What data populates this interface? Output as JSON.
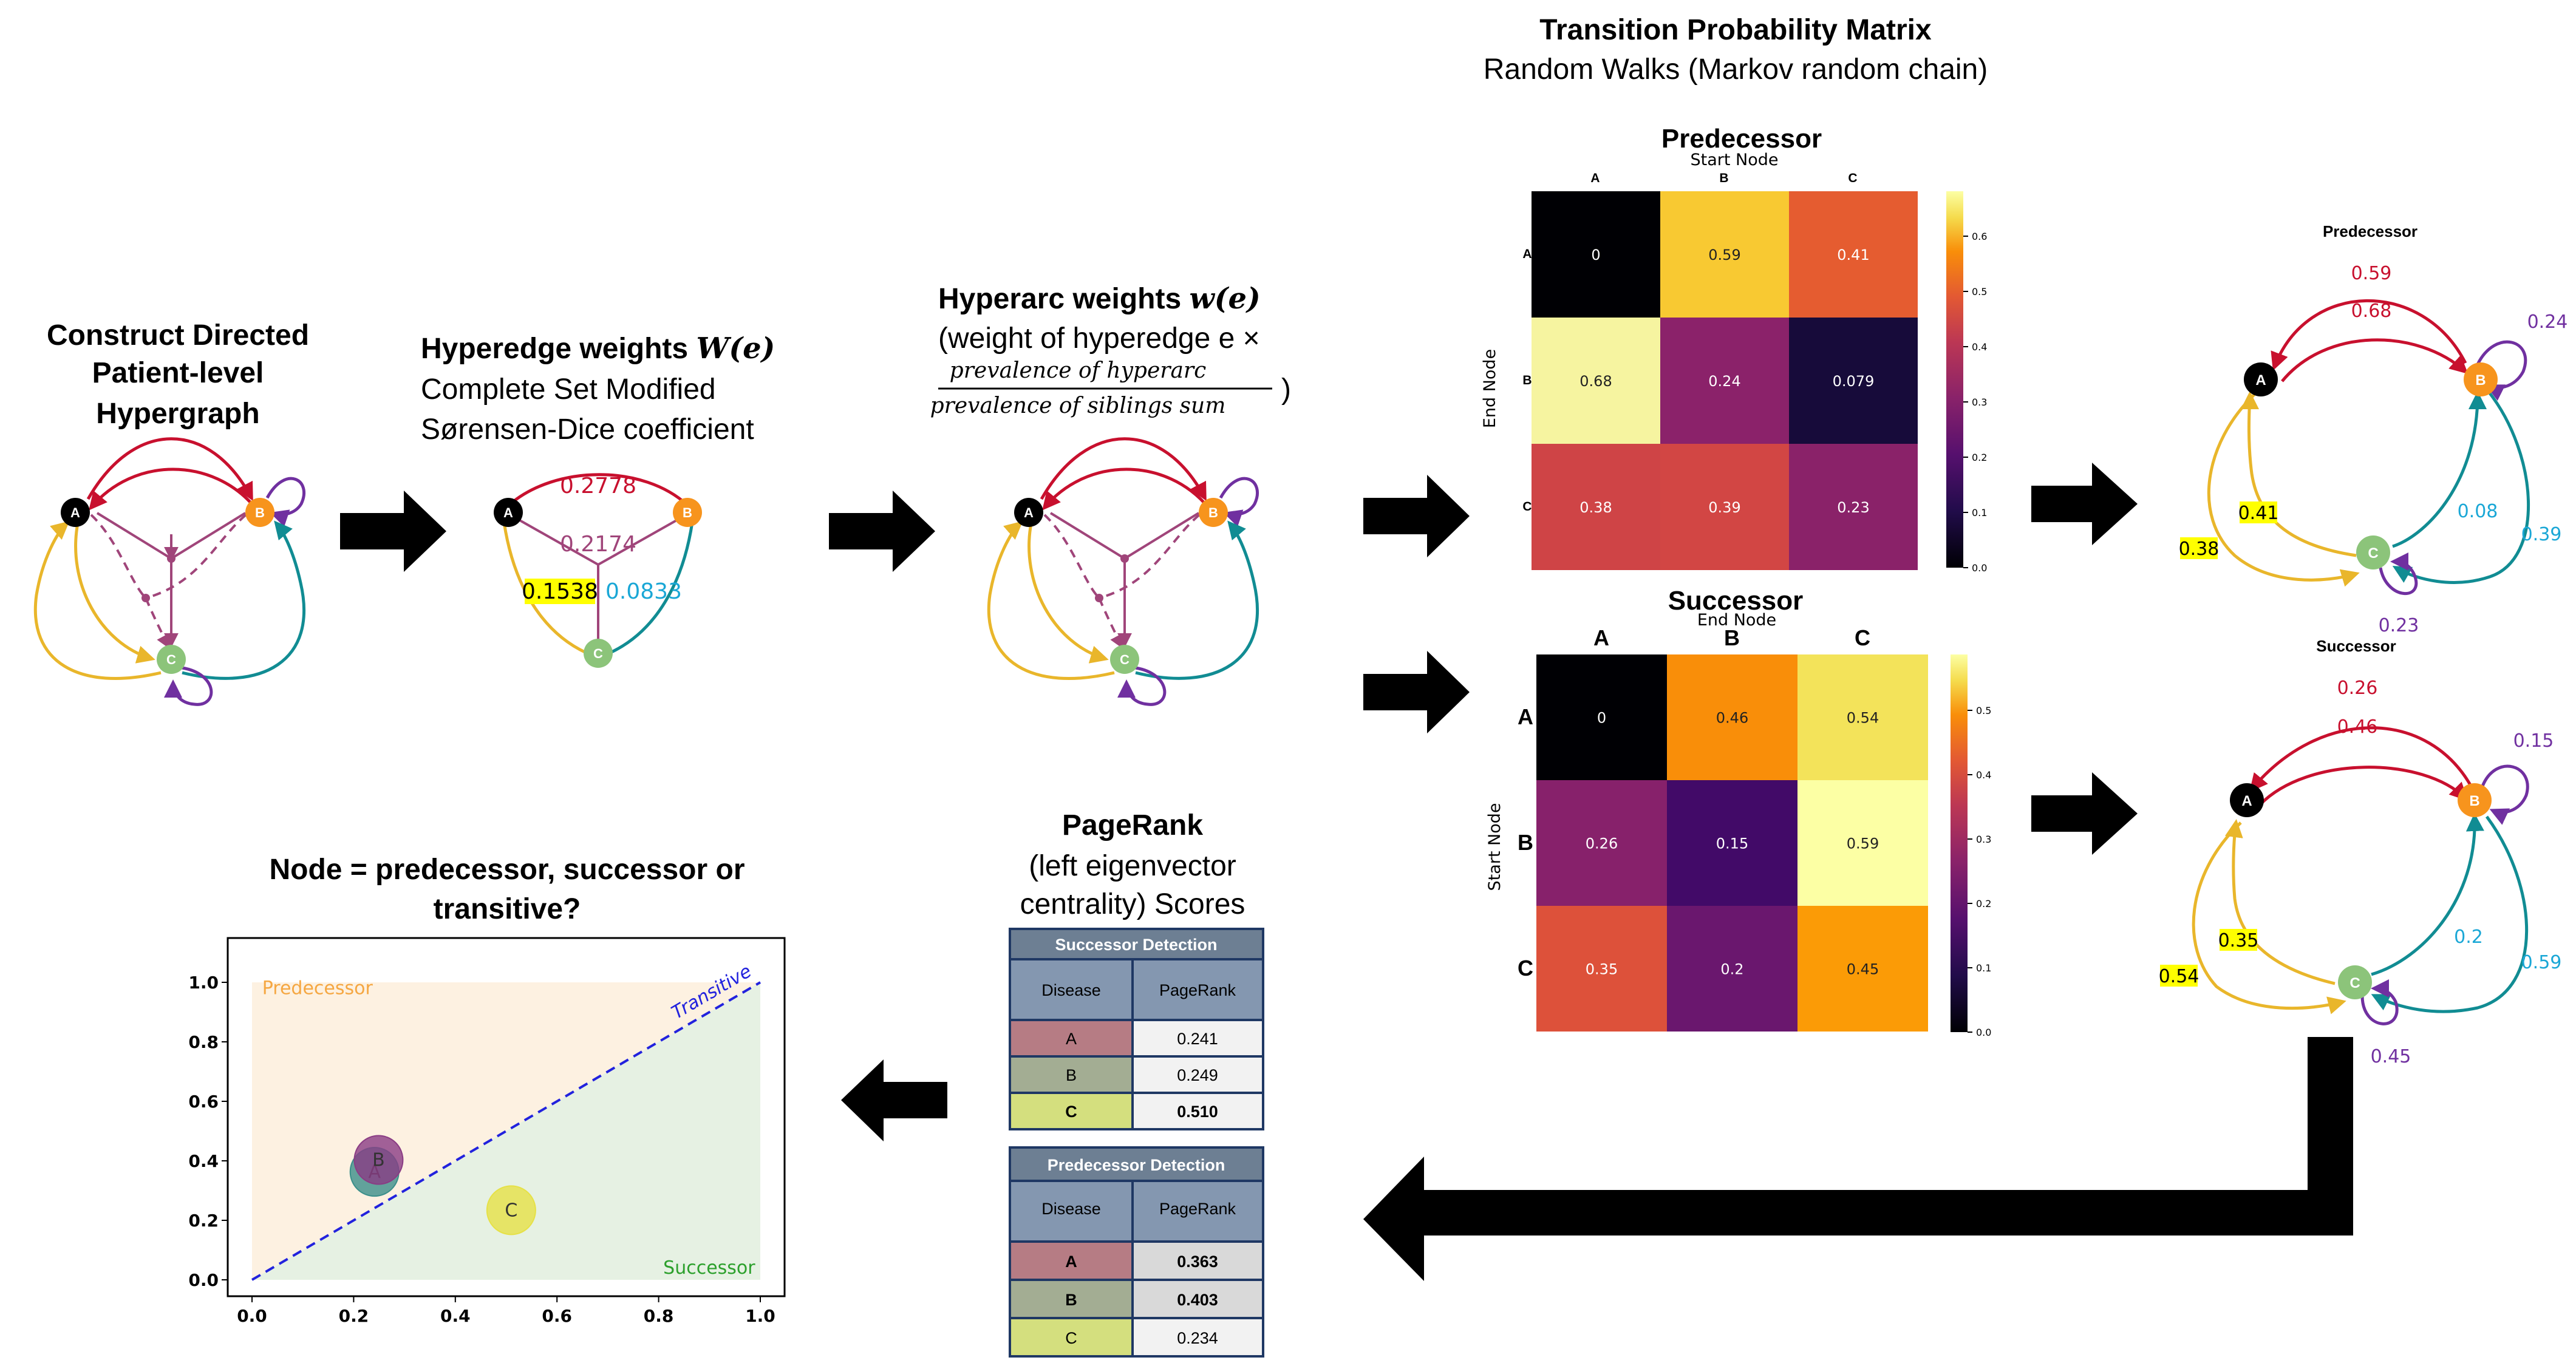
{
  "construct": {
    "title_lines": [
      "Construct Directed",
      "Patient-level",
      "Hypergraph"
    ]
  },
  "hyperedge": {
    "title_text": "Hyperedge weights ",
    "title_math": "W(e)",
    "lines": [
      "Complete Set Modified",
      "Sørensen-Dice coefficient"
    ],
    "w_ab": "0.2778",
    "w_tri": "0.2174",
    "w_ac": "0.1538",
    "w_bc": "0.0833"
  },
  "hyperarc": {
    "title_text": "Hyperarc weights ",
    "title_math": "w(e)",
    "paren_line": "(weight of hyperedge e ×",
    "fraction_num": "prevalence of hyperarc",
    "fraction_den": "prevalence of siblings sum",
    "close_paren": ")"
  },
  "nodes": {
    "a": "A",
    "b": "B",
    "c": "C"
  },
  "tpm": {
    "title": "Transition Probability Matrix",
    "subtitle": "Random Walks (Markov random chain)"
  },
  "pred_heatmap": {
    "title": "Predecessor",
    "top_label": "Start Node",
    "side_label": "End Node",
    "col_labels": [
      "A",
      "B",
      "C"
    ],
    "row_labels": [
      "A",
      "B",
      "C"
    ],
    "values": [
      [
        "0",
        "0.59",
        "0.41"
      ],
      [
        "0.68",
        "0.24",
        "0.079"
      ],
      [
        "0.38",
        "0.39",
        "0.23"
      ]
    ],
    "colors": [
      [
        "#000004",
        "#f8c932",
        "#e55c30"
      ],
      [
        "#f6f4a0",
        "#8b226a",
        "#170b3a"
      ],
      [
        "#cf4446",
        "#d24644",
        "#8a2269"
      ]
    ],
    "cbar_ticks": [
      "0.0",
      "0.1",
      "0.2",
      "0.3",
      "0.4",
      "0.5",
      "0.6"
    ]
  },
  "succ_heatmap": {
    "title": "Successor",
    "top_label": "End Node",
    "side_label": "Start Node",
    "col_labels": [
      "A",
      "B",
      "C"
    ],
    "row_labels": [
      "A",
      "B",
      "C"
    ],
    "values": [
      [
        "0",
        "0.46",
        "0.54"
      ],
      [
        "0.26",
        "0.15",
        "0.59"
      ],
      [
        "0.35",
        "0.2",
        "0.45"
      ]
    ],
    "colors": [
      [
        "#000004",
        "#f98e09",
        "#f3e35a"
      ],
      [
        "#87216b",
        "#420a68",
        "#fcffa4"
      ],
      [
        "#dd513a",
        "#6a176e",
        "#fb9b06"
      ]
    ],
    "cbar_ticks": [
      "0.0",
      "0.1",
      "0.2",
      "0.3",
      "0.4",
      "0.5"
    ]
  },
  "pred_graph": {
    "title": "Predecessor",
    "ba_top": "0.59",
    "ab_inner": "0.68",
    "bb": "0.24",
    "ca_inner": "0.41",
    "ac_outer": "0.38",
    "cb_inner": "0.08",
    "bc_outer": "0.39",
    "cc": "0.23"
  },
  "succ_graph": {
    "title": "Successor",
    "ba_top": "0.26",
    "ab_inner": "0.46",
    "bb": "0.15",
    "ca_inner": "0.35",
    "ac_outer": "0.54",
    "cb_inner": "0.2",
    "bc_outer": "0.59",
    "cc": "0.45"
  },
  "pagerank": {
    "title_lines": [
      "PageRank",
      "(left eigenvector",
      "centrality) Scores"
    ],
    "succ_table": {
      "title": "Successor Detection",
      "headers": [
        "Disease",
        "PageRank"
      ],
      "rows": [
        [
          "A",
          "0.241"
        ],
        [
          "B",
          "0.249"
        ],
        [
          "C",
          "0.510"
        ]
      ]
    },
    "pred_table": {
      "title": "Predecessor Detection",
      "headers": [
        "Disease",
        "PageRank"
      ],
      "rows": [
        [
          "A",
          "0.363"
        ],
        [
          "B",
          "0.403"
        ],
        [
          "C",
          "0.234"
        ]
      ]
    },
    "row_colors": [
      "#b67c84",
      "#a3ad93",
      "#d4df7e"
    ]
  },
  "scatter": {
    "title_lines": [
      "Node = predecessor, successor or",
      "transitive?"
    ],
    "region_pred": "Predecessor",
    "region_succ": "Successor",
    "diag_label": "Transitive",
    "ticks": [
      "0.0",
      "0.2",
      "0.4",
      "0.6",
      "0.8",
      "1.0"
    ],
    "colors": {
      "pred_region": "#fdf1e1",
      "succ_region": "#e6f1e3",
      "pred_text": "#f5a742",
      "succ_text": "#2ca02c",
      "diag": "#2222dd"
    }
  },
  "chart_data": {
    "type": "scatter",
    "title": "Node = predecessor, successor or transitive?",
    "xlim": [
      0,
      1
    ],
    "ylim": [
      0,
      1
    ],
    "points": [
      {
        "label": "A",
        "x": 0.241,
        "y": 0.363,
        "color": "#3b8f8a"
      },
      {
        "label": "B",
        "x": 0.249,
        "y": 0.403,
        "color": "#8a3c84"
      },
      {
        "label": "C",
        "x": 0.51,
        "y": 0.234,
        "color": "#e6e146"
      }
    ],
    "annotations": [
      "Predecessor",
      "Successor",
      "Transitive"
    ]
  }
}
